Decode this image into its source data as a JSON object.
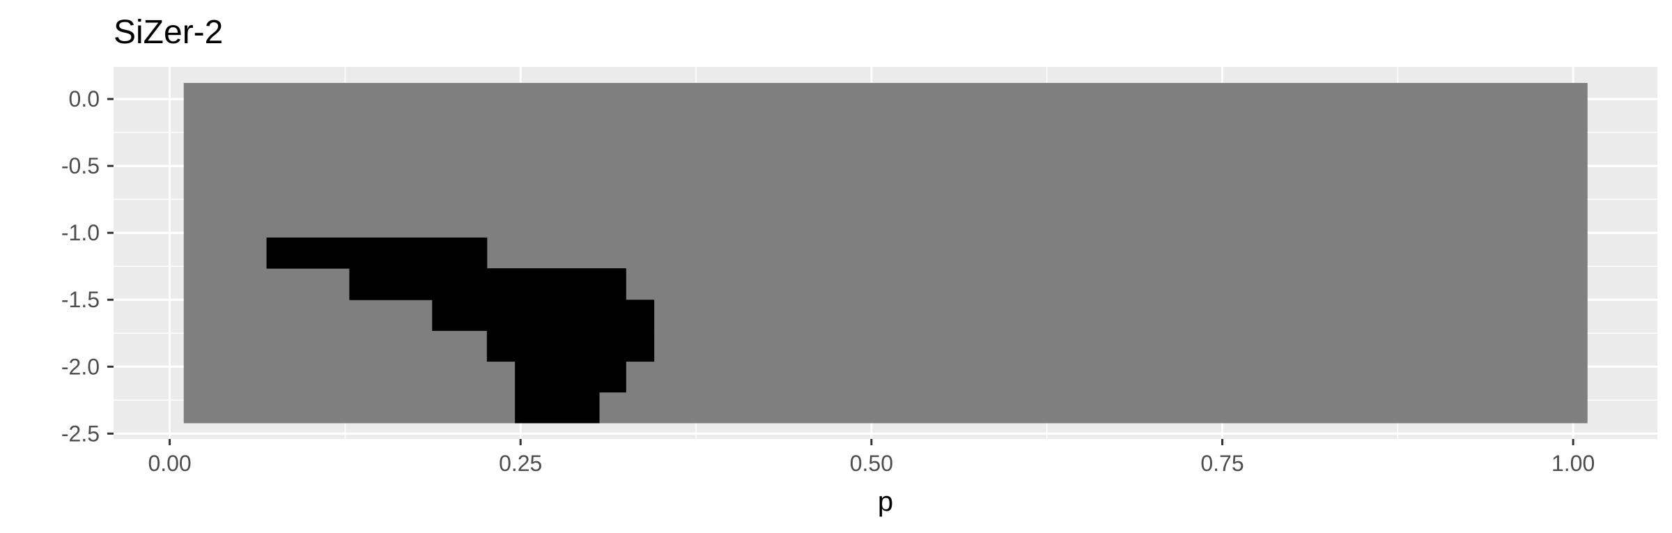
{
  "chart_data": {
    "type": "heatmap",
    "title": "SiZer-2",
    "xlabel": "p",
    "ylabel": "",
    "xlim": [
      -0.04,
      1.06
    ],
    "ylim": [
      -2.54,
      0.24
    ],
    "x_ticks": [
      0.0,
      0.25,
      0.5,
      0.75,
      1.0
    ],
    "x_tick_labels": [
      "0.00",
      "0.25",
      "0.50",
      "0.75",
      "1.00"
    ],
    "y_ticks": [
      0.0,
      -0.5,
      -1.0,
      -1.5,
      -2.0,
      -2.5
    ],
    "y_tick_labels": [
      "0.0",
      "-0.5",
      "-1.0",
      "-1.5",
      "-2.0",
      "-2.5"
    ],
    "grid": true,
    "colors": {
      "panel_background": "#ebebeb",
      "grid": "#ffffff",
      "region_gray": "#7f7f7f",
      "region_black": "#000000"
    },
    "regions": [
      {
        "fill": "gray",
        "x0": 0.01,
        "x1": 1.01,
        "y0": -2.42,
        "y1": 0.12
      },
      {
        "fill": "black",
        "x0": 0.069,
        "x1": 0.226,
        "y0": -1.265,
        "y1": -1.035
      },
      {
        "fill": "black",
        "x0": 0.128,
        "x1": 0.325,
        "y0": -1.5,
        "y1": -1.265
      },
      {
        "fill": "black",
        "x0": 0.187,
        "x1": 0.345,
        "y0": -1.73,
        "y1": -1.5
      },
      {
        "fill": "black",
        "x0": 0.226,
        "x1": 0.345,
        "y0": -1.96,
        "y1": -1.73
      },
      {
        "fill": "black",
        "x0": 0.246,
        "x1": 0.325,
        "y0": -2.19,
        "y1": -1.96
      },
      {
        "fill": "black",
        "x0": 0.246,
        "x1": 0.306,
        "y0": -2.42,
        "y1": -2.19
      }
    ]
  }
}
